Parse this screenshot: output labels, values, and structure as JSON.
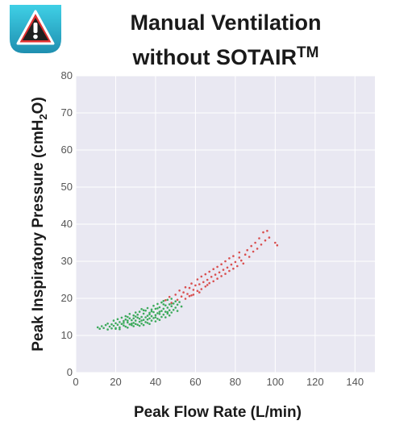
{
  "colors": {
    "plot_bg": "#e9e8f2",
    "grid": "#ffffff",
    "green_points": "#3daa5c",
    "red_points": "#d94f4f",
    "badge_bg_top": "#3fd0e6",
    "badge_bg_bottom": "#1f8fb0",
    "badge_triangle": "#e03131"
  },
  "badge": {
    "icon": "warning-triangle-icon"
  },
  "chart_data": {
    "type": "scatter",
    "title_main": "Manual Ventilation",
    "title_line2": "without SOTAIR",
    "title_superscript": "TM",
    "xlabel": "Peak Flow Rate (L/min)",
    "ylabel_prefix": "Peak Inspiratory Pressure (cmH",
    "ylabel_sub": "2",
    "ylabel_suffix": "O)",
    "xlim": [
      0,
      150
    ],
    "ylim": [
      0,
      80
    ],
    "xticks": [
      0,
      20,
      40,
      60,
      80,
      100,
      120,
      140
    ],
    "yticks": [
      0,
      10,
      20,
      30,
      40,
      50,
      60,
      70,
      80
    ],
    "grid": true,
    "series": [
      {
        "color": "green",
        "points": [
          [
            11,
            12.2
          ],
          [
            12,
            11.8
          ],
          [
            13,
            12.5
          ],
          [
            14,
            12.0
          ],
          [
            15,
            12.8
          ],
          [
            16,
            11.6
          ],
          [
            16,
            13.2
          ],
          [
            17,
            12.4
          ],
          [
            18,
            13.0
          ],
          [
            18,
            11.9
          ],
          [
            19,
            12.6
          ],
          [
            19,
            14.0
          ],
          [
            20,
            13.3
          ],
          [
            20,
            11.8
          ],
          [
            21,
            12.9
          ],
          [
            21,
            14.4
          ],
          [
            22,
            13.6
          ],
          [
            22,
            12.2
          ],
          [
            23,
            13.1
          ],
          [
            23,
            14.8
          ],
          [
            24,
            12.7
          ],
          [
            24,
            13.9
          ],
          [
            25,
            14.3
          ],
          [
            25,
            12.4
          ],
          [
            25,
            15.2
          ],
          [
            26,
            13.5
          ],
          [
            26,
            12.1
          ],
          [
            27,
            14.6
          ],
          [
            27,
            13.0
          ],
          [
            27,
            15.8
          ],
          [
            28,
            12.8
          ],
          [
            28,
            14.1
          ],
          [
            29,
            13.4
          ],
          [
            29,
            15.4
          ],
          [
            29,
            12.5
          ],
          [
            30,
            14.0
          ],
          [
            30,
            16.2
          ],
          [
            30,
            13.1
          ],
          [
            31,
            14.8
          ],
          [
            31,
            12.9
          ],
          [
            31,
            15.6
          ],
          [
            32,
            13.7
          ],
          [
            32,
            14.5
          ],
          [
            32,
            16.4
          ],
          [
            33,
            13.2
          ],
          [
            33,
            15.0
          ],
          [
            33,
            17.1
          ],
          [
            34,
            14.2
          ],
          [
            34,
            12.8
          ],
          [
            34,
            15.9
          ],
          [
            35,
            13.6
          ],
          [
            35,
            14.9
          ],
          [
            35,
            16.7
          ],
          [
            36,
            15.3
          ],
          [
            36,
            13.4
          ],
          [
            36,
            17.4
          ],
          [
            37,
            14.6
          ],
          [
            37,
            16.1
          ],
          [
            37,
            13.1
          ],
          [
            38,
            15.2
          ],
          [
            38,
            17.0
          ],
          [
            38,
            14.0
          ],
          [
            39,
            16.3
          ],
          [
            39,
            14.7
          ],
          [
            39,
            18.0
          ],
          [
            40,
            15.5
          ],
          [
            40,
            13.8
          ],
          [
            40,
            17.2
          ],
          [
            41,
            16.0
          ],
          [
            41,
            14.5
          ],
          [
            41,
            18.5
          ],
          [
            42,
            15.8
          ],
          [
            42,
            17.6
          ],
          [
            42,
            14.2
          ],
          [
            43,
            16.6
          ],
          [
            43,
            15.0
          ],
          [
            43,
            18.9
          ],
          [
            44,
            17.2
          ],
          [
            44,
            15.6
          ],
          [
            44,
            19.3
          ],
          [
            45,
            16.4
          ],
          [
            45,
            18.1
          ],
          [
            45,
            14.9
          ],
          [
            46,
            17.5
          ],
          [
            46,
            15.9
          ],
          [
            46,
            19.6
          ],
          [
            47,
            16.8
          ],
          [
            47,
            18.4
          ],
          [
            47,
            15.4
          ],
          [
            48,
            17.9
          ],
          [
            48,
            16.2
          ],
          [
            48,
            19.9
          ],
          [
            49,
            18.6
          ],
          [
            49,
            16.9
          ],
          [
            50,
            17.5
          ],
          [
            50,
            19.2
          ],
          [
            51,
            18.3
          ],
          [
            51,
            16.6
          ],
          [
            52,
            19.0
          ],
          [
            53,
            17.8
          ],
          [
            20,
            12.0
          ],
          [
            22,
            11.7
          ],
          [
            24,
            13.4
          ],
          [
            26,
            14.0
          ],
          [
            28,
            13.2
          ],
          [
            30,
            15.1
          ],
          [
            32,
            12.6
          ],
          [
            34,
            16.8
          ],
          [
            36,
            14.3
          ],
          [
            38,
            16.5
          ],
          [
            40,
            14.9
          ],
          [
            42,
            16.4
          ],
          [
            44,
            18.4
          ],
          [
            46,
            16.3
          ],
          [
            48,
            18.6
          ],
          [
            26,
            15.0
          ],
          [
            29,
            14.6
          ],
          [
            33,
            14.0
          ],
          [
            37,
            15.7
          ],
          [
            41,
            17.3
          ]
        ]
      },
      {
        "color": "red",
        "points": [
          [
            45,
            19.5
          ],
          [
            47,
            20.4
          ],
          [
            48,
            18.8
          ],
          [
            50,
            21.0
          ],
          [
            51,
            19.6
          ],
          [
            52,
            22.1
          ],
          [
            53,
            20.5
          ],
          [
            54,
            21.6
          ],
          [
            55,
            19.9
          ],
          [
            55,
            23.0
          ],
          [
            56,
            21.2
          ],
          [
            57,
            22.8
          ],
          [
            57,
            20.6
          ],
          [
            58,
            24.0
          ],
          [
            59,
            22.3
          ],
          [
            59,
            21.0
          ],
          [
            60,
            23.5
          ],
          [
            61,
            22.0
          ],
          [
            61,
            25.1
          ],
          [
            62,
            23.8
          ],
          [
            63,
            22.5
          ],
          [
            63,
            25.9
          ],
          [
            64,
            24.4
          ],
          [
            65,
            23.2
          ],
          [
            65,
            26.5
          ],
          [
            66,
            25.0
          ],
          [
            67,
            24.1
          ],
          [
            67,
            27.2
          ],
          [
            68,
            25.8
          ],
          [
            69,
            24.6
          ],
          [
            69,
            27.9
          ],
          [
            70,
            26.4
          ],
          [
            71,
            25.3
          ],
          [
            71,
            28.5
          ],
          [
            72,
            27.0
          ],
          [
            73,
            26.0
          ],
          [
            73,
            29.2
          ],
          [
            74,
            27.7
          ],
          [
            75,
            26.6
          ],
          [
            75,
            30.0
          ],
          [
            76,
            28.3
          ],
          [
            77,
            27.4
          ],
          [
            77,
            30.8
          ],
          [
            78,
            29.1
          ],
          [
            79,
            28.0
          ],
          [
            79,
            31.4
          ],
          [
            80,
            29.8
          ],
          [
            81,
            28.7
          ],
          [
            82,
            31.0
          ],
          [
            82,
            32.4
          ],
          [
            83,
            30.2
          ],
          [
            84,
            29.4
          ],
          [
            85,
            31.8
          ],
          [
            86,
            33.0
          ],
          [
            87,
            31.2
          ],
          [
            88,
            34.1
          ],
          [
            89,
            32.6
          ],
          [
            90,
            35.0
          ],
          [
            91,
            33.4
          ],
          [
            92,
            36.2
          ],
          [
            93,
            34.5
          ],
          [
            94,
            37.8
          ],
          [
            95,
            35.6
          ],
          [
            96,
            38.2
          ],
          [
            97,
            36.4
          ],
          [
            100,
            35.0
          ],
          [
            101,
            34.3
          ],
          [
            58,
            20.8
          ],
          [
            62,
            21.6
          ],
          [
            66,
            23.6
          ]
        ]
      }
    ]
  }
}
